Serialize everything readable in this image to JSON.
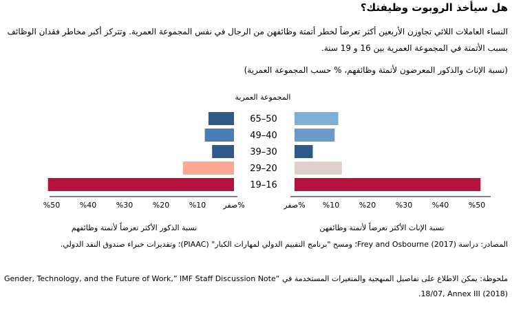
{
  "title": "هل سيأخذ الروبوت وظيفتك؟",
  "subtitle": "النساء العاملات اللائي تجاوزن الأربعين أكثر تعرضاً لخطر أتمتة وظائفهن من الرجال في نفس المجموعة العمرية. وتتركز أكبر مخاطر فقدان الوظائف بسبب الأتمتة في المجموعة العمرية بين 16 و 19 سنة.",
  "unit_line": "(نسبة الإناث والذكور المعرضون لأتمتة وظائفهم، % حسب المجموعة العمرية)",
  "footnotes": {
    "sources": "المصادر: دراسة (Frey and Osbourne (2017؛ ومسح \"برنامج التقييم الدولي لمهارات الكبار\" (PIAAC)؛ وتقديرات خبراء صندوق النقد الدولي.",
    "note": "ملحوظة: يمكن الاطلاع على تفاصيل المنهجية والمتغيرات المستخدمة في “Gender, Technology, and the Future of Work,” IMF Staff Discussion Note 18/07, Annex III (2018)."
  },
  "chart_data": {
    "type": "bar",
    "orientation": "horizontal-butterfly",
    "categories_title": "المجموعة العمرية",
    "categories": [
      "65–50",
      "49–40",
      "39–30",
      "29–20",
      "19–16"
    ],
    "xlim": [
      0,
      50
    ],
    "tick_labels_left": [
      "%50",
      "%40",
      "%30",
      "%20",
      "%10",
      "صفر%"
    ],
    "tick_labels_right": [
      "صفر%",
      "%10",
      "%20",
      "%30",
      "%40",
      "%50"
    ],
    "series": [
      {
        "name": "نسبة الذكور الأكثر تعرضاً لأتمتة وظائفهم",
        "side": "left",
        "values": [
          7,
          8,
          6,
          14,
          51
        ],
        "colors": [
          "#2e5a8a",
          "#4a7db5",
          "#2e5a8a",
          "#f9a891",
          "#b5123e"
        ]
      },
      {
        "name": "نسبة الإناث الأكثر تعرضاً لأتمتة وظائفهن",
        "side": "right",
        "values": [
          12,
          11,
          5,
          13,
          51
        ],
        "colors": [
          "#7eaed6",
          "#6a9bc9",
          "#2e5a8a",
          "#e0d0cd",
          "#b5123e"
        ]
      }
    ]
  }
}
